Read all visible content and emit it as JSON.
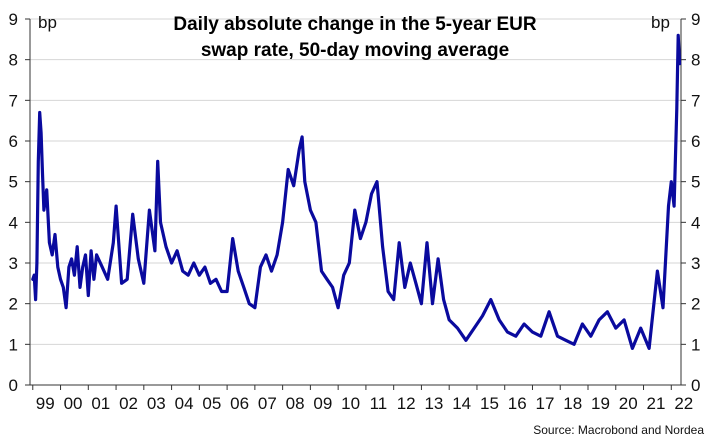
{
  "chart_data": {
    "type": "line",
    "title_lines": [
      "Daily absolute change in the 5-year EUR",
      "swap rate, 50-day moving average"
    ],
    "y_unit_left": "bp",
    "y_unit_right": "bp",
    "ylim": [
      0,
      9
    ],
    "y_ticks": [
      "0",
      "1",
      "2",
      "3",
      "4",
      "5",
      "6",
      "7",
      "8",
      "9"
    ],
    "x_ticks": [
      "99",
      "00",
      "01",
      "02",
      "03",
      "04",
      "05",
      "06",
      "07",
      "08",
      "09",
      "10",
      "11",
      "12",
      "13",
      "14",
      "15",
      "16",
      "17",
      "18",
      "19",
      "20",
      "21",
      "22"
    ],
    "xlim": [
      1998.9,
      2022.35
    ],
    "grid": "horizontal",
    "source": "Source: Macrobond and Nordea",
    "series": [
      {
        "color": "#0a0a9e",
        "x": [
          1999.0,
          1999.05,
          1999.1,
          1999.15,
          1999.2,
          1999.25,
          1999.3,
          1999.35,
          1999.4,
          1999.5,
          1999.6,
          1999.7,
          1999.8,
          1999.9,
          2000.0,
          2000.1,
          2000.2,
          2000.3,
          2000.4,
          2000.5,
          2000.6,
          2000.7,
          2000.8,
          2000.9,
          2001.0,
          2001.1,
          2001.2,
          2001.3,
          2001.5,
          2001.7,
          2001.9,
          2002.0,
          2002.2,
          2002.4,
          2002.6,
          2002.8,
          2003.0,
          2003.2,
          2003.4,
          2003.5,
          2003.6,
          2003.8,
          2004.0,
          2004.2,
          2004.4,
          2004.6,
          2004.8,
          2005.0,
          2005.2,
          2005.4,
          2005.6,
          2005.8,
          2006.0,
          2006.2,
          2006.4,
          2006.6,
          2006.8,
          2007.0,
          2007.2,
          2007.4,
          2007.6,
          2007.8,
          2008.0,
          2008.2,
          2008.4,
          2008.6,
          2008.7,
          2008.8,
          2009.0,
          2009.2,
          2009.4,
          2009.6,
          2009.8,
          2010.0,
          2010.2,
          2010.4,
          2010.6,
          2010.8,
          2011.0,
          2011.2,
          2011.4,
          2011.6,
          2011.8,
          2012.0,
          2012.2,
          2012.4,
          2012.6,
          2012.8,
          2013.0,
          2013.2,
          2013.4,
          2013.6,
          2013.8,
          2014.0,
          2014.3,
          2014.6,
          2014.9,
          2015.2,
          2015.5,
          2015.8,
          2016.1,
          2016.4,
          2016.7,
          2017.0,
          2017.3,
          2017.6,
          2017.9,
          2018.2,
          2018.5,
          2018.8,
          2019.1,
          2019.4,
          2019.7,
          2020.0,
          2020.3,
          2020.6,
          2020.9,
          2021.2,
          2021.5,
          2021.7,
          2021.9,
          2022.0,
          2022.1,
          2022.2,
          2022.25,
          2022.3
        ],
        "y": [
          2.6,
          2.7,
          2.1,
          3.0,
          5.5,
          6.7,
          6.2,
          5.2,
          4.3,
          4.8,
          3.5,
          3.2,
          3.7,
          2.9,
          2.6,
          2.4,
          1.9,
          2.9,
          3.1,
          2.7,
          3.4,
          2.4,
          2.9,
          3.2,
          2.2,
          3.3,
          2.6,
          3.2,
          2.9,
          2.6,
          3.5,
          4.4,
          2.5,
          2.6,
          4.2,
          3.1,
          2.5,
          4.3,
          3.3,
          5.5,
          4.0,
          3.4,
          3.0,
          3.3,
          2.8,
          2.7,
          3.0,
          2.7,
          2.9,
          2.5,
          2.6,
          2.3,
          2.3,
          3.6,
          2.8,
          2.4,
          2.0,
          1.9,
          2.9,
          3.2,
          2.8,
          3.2,
          4.0,
          5.3,
          4.9,
          5.8,
          6.1,
          5.0,
          4.3,
          4.0,
          2.8,
          2.6,
          2.4,
          1.9,
          2.7,
          3.0,
          4.3,
          3.6,
          4.0,
          4.7,
          5.0,
          3.4,
          2.3,
          2.1,
          3.5,
          2.4,
          3.0,
          2.5,
          2.0,
          3.5,
          2.0,
          3.1,
          2.1,
          1.6,
          1.4,
          1.1,
          1.4,
          1.7,
          2.1,
          1.6,
          1.3,
          1.2,
          1.5,
          1.3,
          1.2,
          1.8,
          1.2,
          1.1,
          1.0,
          1.5,
          1.2,
          1.6,
          1.8,
          1.4,
          1.6,
          0.9,
          1.4,
          0.9,
          2.8,
          1.9,
          4.4,
          5.0,
          4.4,
          6.8,
          8.6,
          7.9
        ]
      }
    ]
  }
}
